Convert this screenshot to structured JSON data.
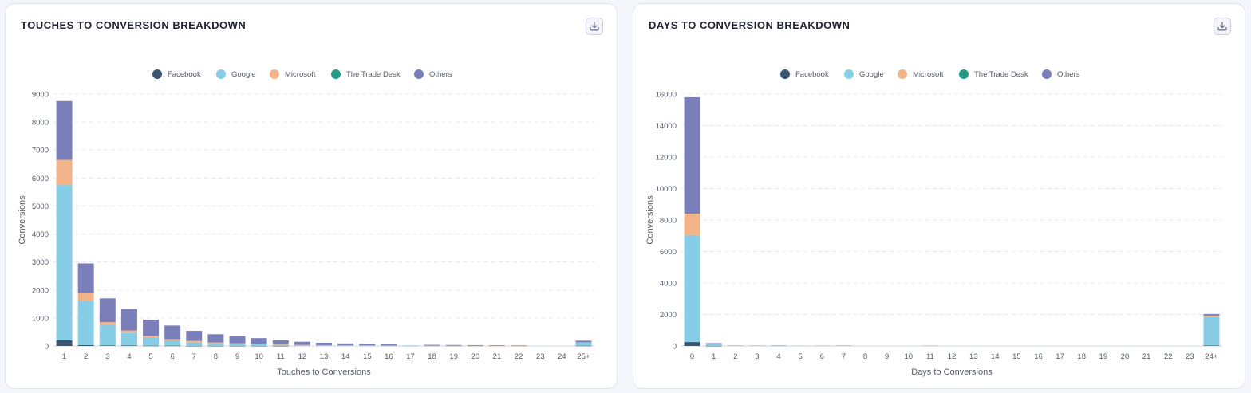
{
  "colors": {
    "Facebook": "#3b5470",
    "Google": "#86cde5",
    "Microsoft": "#f3b388",
    "The Trade Desk": "#2a9a88",
    "Others": "#7a7fba"
  },
  "cards": [
    {
      "title": "TOUCHES TO CONVERSION BREAKDOWN",
      "download_icon": "download-icon"
    },
    {
      "title": "DAYS TO CONVERSION BREAKDOWN",
      "download_icon": "download-icon"
    }
  ],
  "chart_data": [
    {
      "type": "bar",
      "stacked": true,
      "xlabel": "Touches to Conversions",
      "ylabel": "Conversions",
      "ylim": [
        0,
        9000
      ],
      "yticks": [
        0,
        1000,
        2000,
        3000,
        4000,
        5000,
        6000,
        7000,
        8000,
        9000
      ],
      "grid": true,
      "legend_position": "top-center",
      "categories": [
        "1",
        "2",
        "3",
        "4",
        "5",
        "6",
        "7",
        "8",
        "9",
        "10",
        "11",
        "12",
        "13",
        "14",
        "15",
        "16",
        "17",
        "18",
        "19",
        "20",
        "21",
        "22",
        "23",
        "24",
        "25+"
      ],
      "series": [
        {
          "name": "Facebook",
          "values": [
            200,
            30,
            20,
            15,
            10,
            10,
            5,
            5,
            5,
            5,
            5,
            0,
            0,
            0,
            0,
            0,
            0,
            0,
            0,
            0,
            0,
            0,
            0,
            0,
            10
          ]
        },
        {
          "name": "Google",
          "values": [
            5550,
            1580,
            720,
            460,
            290,
            190,
            140,
            90,
            70,
            55,
            40,
            30,
            25,
            20,
            15,
            12,
            5,
            10,
            8,
            6,
            5,
            4,
            0,
            0,
            110
          ]
        },
        {
          "name": "Microsoft",
          "values": [
            900,
            280,
            110,
            80,
            60,
            45,
            35,
            25,
            20,
            15,
            10,
            8,
            6,
            5,
            5,
            4,
            15,
            3,
            3,
            2,
            2,
            2,
            0,
            0,
            10
          ]
        },
        {
          "name": "The Trade Desk",
          "values": [
            0,
            0,
            0,
            0,
            0,
            0,
            0,
            0,
            0,
            0,
            0,
            0,
            0,
            0,
            0,
            0,
            0,
            0,
            0,
            0,
            0,
            0,
            0,
            0,
            0
          ]
        },
        {
          "name": "Others",
          "values": [
            2100,
            1060,
            850,
            765,
            580,
            485,
            360,
            300,
            245,
            205,
            145,
            112,
            84,
            65,
            50,
            40,
            0,
            27,
            24,
            22,
            18,
            14,
            0,
            0,
            60
          ]
        }
      ]
    },
    {
      "type": "bar",
      "stacked": true,
      "xlabel": "Days to Conversions",
      "ylabel": "Conversions",
      "ylim": [
        0,
        16000
      ],
      "yticks": [
        0,
        2000,
        4000,
        6000,
        8000,
        10000,
        12000,
        14000,
        16000
      ],
      "grid": true,
      "legend_position": "top-center",
      "categories": [
        "0",
        "1",
        "2",
        "3",
        "4",
        "5",
        "6",
        "7",
        "8",
        "9",
        "10",
        "11",
        "12",
        "13",
        "14",
        "15",
        "16",
        "17",
        "18",
        "19",
        "20",
        "21",
        "22",
        "23",
        "24+"
      ],
      "series": [
        {
          "name": "Facebook",
          "values": [
            250,
            10,
            0,
            0,
            0,
            0,
            0,
            0,
            0,
            0,
            0,
            0,
            0,
            0,
            0,
            0,
            0,
            0,
            0,
            0,
            0,
            0,
            0,
            0,
            30
          ]
        },
        {
          "name": "Google",
          "values": [
            6800,
            130,
            40,
            35,
            20,
            25,
            30,
            40,
            0,
            0,
            0,
            30,
            0,
            0,
            0,
            0,
            0,
            0,
            0,
            0,
            0,
            0,
            0,
            0,
            1800
          ]
        },
        {
          "name": "Microsoft",
          "values": [
            1350,
            10,
            0,
            0,
            30,
            0,
            0,
            0,
            0,
            0,
            0,
            0,
            0,
            0,
            0,
            0,
            0,
            0,
            0,
            0,
            0,
            0,
            0,
            0,
            100
          ]
        },
        {
          "name": "The Trade Desk",
          "values": [
            0,
            0,
            0,
            0,
            0,
            0,
            0,
            0,
            0,
            0,
            0,
            0,
            0,
            0,
            0,
            0,
            0,
            0,
            0,
            0,
            0,
            0,
            0,
            0,
            0
          ]
        },
        {
          "name": "Others",
          "values": [
            7400,
            30,
            0,
            0,
            0,
            0,
            0,
            0,
            0,
            0,
            0,
            0,
            0,
            0,
            0,
            0,
            0,
            0,
            0,
            0,
            0,
            0,
            0,
            0,
            100
          ]
        }
      ]
    }
  ]
}
